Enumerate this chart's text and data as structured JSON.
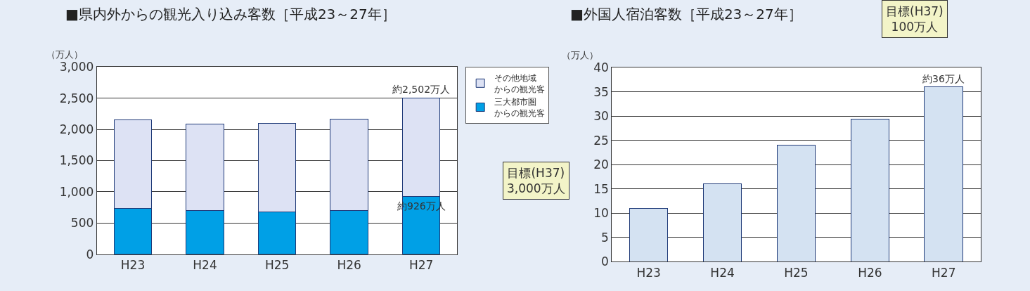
{
  "chart_data": [
    {
      "type": "bar",
      "title": "■県内外からの観光入り込み客数［平成23～27年］",
      "ylabel": "（万人）",
      "categories": [
        "H23",
        "H24",
        "H25",
        "H26",
        "H27"
      ],
      "stacked": true,
      "series": [
        {
          "name": "三大都市圏からの観光客",
          "color": "#00a0e6",
          "values": [
            730,
            700,
            680,
            700,
            926
          ]
        },
        {
          "name": "その他地域からの観光客",
          "color": "#dde2f4",
          "values": [
            1420,
            1390,
            1420,
            1460,
            1576
          ]
        }
      ],
      "ylim": [
        0,
        3000
      ],
      "yticks": [
        0,
        500,
        {
          "value": 1000,
          "label": "1,000"
        },
        {
          "value": 1500,
          "label": "1,500"
        },
        {
          "value": 2000,
          "label": "2,000"
        },
        {
          "value": 2500,
          "label": "2,500"
        },
        {
          "value": 3000,
          "label": "3,000"
        }
      ],
      "grid": "y",
      "legend": "right",
      "annotations": [
        {
          "text": "約2,502万人",
          "x": "H27",
          "y": 2502
        },
        {
          "text": "約926万人",
          "x": "H27",
          "y": 926
        },
        "目標(H37)\n3,000万人"
      ]
    },
    {
      "type": "bar",
      "title": "■外国人宿泊客数［平成23～27年］",
      "ylabel": "（万人）",
      "categories": [
        "H23",
        "H24",
        "H25",
        "H26",
        "H27"
      ],
      "series": [
        {
          "color": "#d4e2f2",
          "values": [
            11,
            16,
            24,
            29.4,
            36
          ]
        }
      ],
      "ylim": [
        0,
        40
      ],
      "yticks": [
        0,
        5,
        10,
        15,
        20,
        25,
        30,
        35,
        40
      ],
      "grid": "y",
      "annotations": [
        {
          "text": "約36万人",
          "x": "H27",
          "y": 36
        },
        "目標(H37)\n100万人"
      ]
    }
  ]
}
